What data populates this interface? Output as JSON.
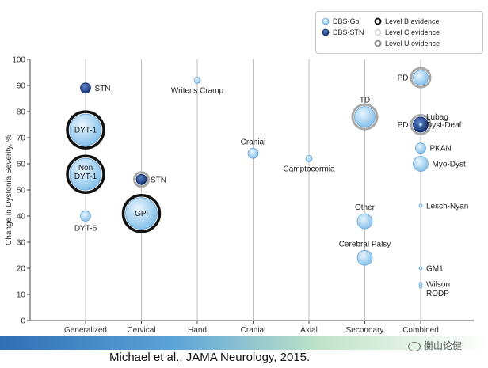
{
  "chart_data": {
    "type": "scatter",
    "categories": [
      "Generalized",
      "Cervical",
      "Hand",
      "Cranial",
      "Axial",
      "Secondary",
      "Combined"
    ],
    "ylabel": "Change in Dystonia Severity, %",
    "ylim": [
      0,
      100
    ],
    "yticks": [
      0,
      10,
      20,
      30,
      40,
      50,
      60,
      70,
      80,
      90,
      100
    ],
    "grid": false,
    "legend_position": "top-right",
    "legend": {
      "series": [
        {
          "key": "gpi",
          "label": "DBS-Gpi",
          "color": "#a9d4f2"
        },
        {
          "key": "stn",
          "label": "DBS-STN",
          "color": "#1f3f8a"
        }
      ],
      "evidence": [
        {
          "key": "B",
          "label": "Level B evidence"
        },
        {
          "key": "C",
          "label": "Level C evidence"
        },
        {
          "key": "U",
          "label": "Level U evidence"
        }
      ]
    },
    "points": [
      {
        "category": "Generalized",
        "y": 89,
        "series": "stn",
        "size": 1,
        "evidence": "none",
        "label": "STN",
        "label_side": "right"
      },
      {
        "category": "Generalized",
        "y": 73,
        "series": "gpi",
        "size": 4,
        "evidence": "B",
        "label": "DYT-1",
        "label_side": "inside"
      },
      {
        "category": "Generalized",
        "y": 56,
        "series": "gpi",
        "size": 4,
        "evidence": "B",
        "label": "Non DYT-1",
        "label_side": "inside"
      },
      {
        "category": "Generalized",
        "y": 40,
        "series": "gpi",
        "size": 1,
        "evidence": "none",
        "label": "DYT-6",
        "label_side": "below"
      },
      {
        "category": "Cervical",
        "y": 54,
        "series": "stn",
        "size": 1,
        "evidence": "U",
        "label": "STN",
        "label_side": "right"
      },
      {
        "category": "Cervical",
        "y": 41,
        "series": "gpi",
        "size": 4,
        "evidence": "B",
        "label": "GPi",
        "label_side": "inside"
      },
      {
        "category": "Hand",
        "y": 92,
        "series": "gpi",
        "size": 0,
        "evidence": "none",
        "label": "Writer's Cramp",
        "label_side": "below"
      },
      {
        "category": "Cranial",
        "y": 64,
        "series": "gpi",
        "size": 1,
        "evidence": "none",
        "label": "Cranial",
        "label_side": "above"
      },
      {
        "category": "Axial",
        "y": 62,
        "series": "gpi",
        "size": 0,
        "evidence": "none",
        "label": "Camptocormia",
        "label_side": "below"
      },
      {
        "category": "Secondary",
        "y": 78,
        "series": "gpi",
        "size": 3,
        "evidence": "U",
        "label": "TD",
        "label_side": "above"
      },
      {
        "category": "Secondary",
        "y": 38,
        "series": "gpi",
        "size": 2,
        "evidence": "none",
        "label": "Other",
        "label_side": "above"
      },
      {
        "category": "Secondary",
        "y": 24,
        "series": "gpi",
        "size": 2,
        "evidence": "none",
        "label": "Cerebral Palsy",
        "label_side": "above"
      },
      {
        "category": "Combined",
        "y": 93,
        "series": "gpi",
        "size": 2,
        "evidence": "U",
        "label": "PD",
        "label_side": "left"
      },
      {
        "category": "Combined",
        "y": 78,
        "series": "gpi",
        "size": -1,
        "evidence": "none",
        "label": "Lubag",
        "label_side": "right"
      },
      {
        "category": "Combined",
        "y": 75,
        "series": "stn",
        "size": 2,
        "evidence": "U",
        "label": "PD",
        "label_side": "left"
      },
      {
        "category": "Combined",
        "y": 75,
        "series": "gpi",
        "size": -1,
        "evidence": "none",
        "label": "Dyst-Deaf",
        "label_side": "right"
      },
      {
        "category": "Combined",
        "y": 66,
        "series": "gpi",
        "size": 1,
        "evidence": "none",
        "label": "PKAN",
        "label_side": "right"
      },
      {
        "category": "Combined",
        "y": 60,
        "series": "gpi",
        "size": 2,
        "evidence": "none",
        "label": "Myo-Dyst",
        "label_side": "right"
      },
      {
        "category": "Combined",
        "y": 44,
        "series": "gpi",
        "size": -1,
        "evidence": "none",
        "label": "Lesch-Nyan",
        "label_side": "right"
      },
      {
        "category": "Combined",
        "y": 20,
        "series": "gpi",
        "size": -1,
        "evidence": "none",
        "label": "GM1",
        "label_side": "right"
      },
      {
        "category": "Combined",
        "y": 14,
        "series": "gpi",
        "size": -1,
        "evidence": "none",
        "label": "Wilson",
        "label_side": "right"
      },
      {
        "category": "Combined",
        "y": 13,
        "series": "gpi",
        "size": -1,
        "evidence": "none",
        "label": "RODP",
        "label_side": "right-low"
      }
    ]
  },
  "footer": {
    "citation": "Michael et al., JAMA Neurology, 2015.",
    "watermark": "衡山论健"
  }
}
